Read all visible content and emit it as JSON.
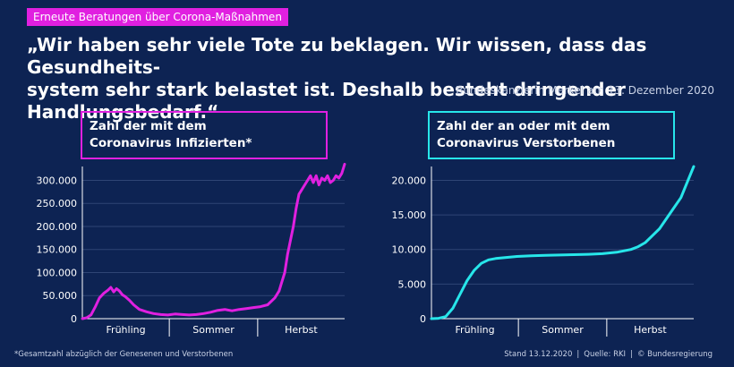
{
  "header": {
    "tag": "Erneute Beratungen über Corona-Maßnahmen",
    "quote_line1": "„Wir haben sehr viele Tote zu beklagen. Wir wissen, dass das Gesundheits-",
    "quote_line2": "system sehr stark belastet ist. Deshalb besteht dringender Handlungsbedarf.“",
    "attribution": "Bundeskanzlerin Merkel am 13. Dezember 2020"
  },
  "colors": {
    "background": "#0d2353",
    "magenta": "#e020e0",
    "cyan": "#27e6ea"
  },
  "footer": {
    "note": "*Gesamtzahl abzüglich der Genesenen und Verstorbenen",
    "stand": "Stand 13.12.2020",
    "source": "Quelle: RKI",
    "copyright": "© Bundesregierung"
  },
  "chart_data": [
    {
      "type": "line",
      "title_line1": "Zahl der mit dem",
      "title_line2": "Coronavirus Infizierten*",
      "color": "#e020e0",
      "ylim": [
        0,
        330000
      ],
      "yticks": [
        0,
        50000,
        100000,
        150000,
        200000,
        250000,
        300000
      ],
      "ytick_labels": [
        "0",
        "50.000",
        "100.000",
        "150.000",
        "200.000",
        "250.000",
        "300.000"
      ],
      "season_labels": [
        "Frühling",
        "Sommer",
        "Herbst"
      ],
      "grid": true,
      "x": [
        0,
        3,
        6,
        9,
        12,
        15,
        18,
        20,
        22,
        24,
        26,
        28,
        30,
        33,
        36,
        40,
        45,
        50,
        55,
        60,
        65,
        70,
        75,
        80,
        85,
        90,
        95,
        100,
        105,
        110,
        115,
        120,
        125,
        130,
        135,
        138,
        140,
        142,
        144,
        146,
        148,
        150,
        152,
        154,
        156,
        158,
        160,
        162,
        164,
        166,
        168,
        170,
        172,
        174,
        176,
        178,
        180,
        182,
        184
      ],
      "values": [
        0,
        2000,
        8000,
        25000,
        45000,
        55000,
        62000,
        68000,
        58000,
        65000,
        60000,
        52000,
        48000,
        40000,
        30000,
        20000,
        15000,
        11000,
        9000,
        8000,
        10000,
        9000,
        8000,
        9000,
        11000,
        14000,
        18000,
        20000,
        17000,
        20000,
        22000,
        24000,
        26000,
        30000,
        45000,
        60000,
        80000,
        100000,
        140000,
        170000,
        200000,
        240000,
        270000,
        280000,
        290000,
        300000,
        310000,
        295000,
        310000,
        290000,
        305000,
        300000,
        310000,
        295000,
        300000,
        310000,
        305000,
        315000,
        335000
      ]
    },
    {
      "type": "line",
      "title_line1": "Zahl der an oder mit dem",
      "title_line2": "Coronavirus Verstorbenen",
      "color": "#27e6ea",
      "ylim": [
        0,
        22000
      ],
      "yticks": [
        0,
        5000,
        10000,
        15000,
        20000
      ],
      "ytick_labels": [
        "0",
        "5.000",
        "10.000",
        "15.000",
        "20.000"
      ],
      "season_labels": [
        "Frühling",
        "Sommer",
        "Herbst"
      ],
      "grid": true,
      "x": [
        0,
        5,
        10,
        15,
        20,
        25,
        30,
        35,
        40,
        45,
        50,
        55,
        60,
        70,
        80,
        90,
        100,
        110,
        120,
        130,
        140,
        145,
        150,
        155,
        160,
        165,
        170,
        175,
        180,
        184
      ],
      "values": [
        0,
        50,
        300,
        1500,
        3500,
        5500,
        7000,
        8000,
        8500,
        8700,
        8800,
        8900,
        9000,
        9100,
        9150,
        9200,
        9250,
        9300,
        9400,
        9600,
        10000,
        10400,
        11000,
        12000,
        13000,
        14500,
        16000,
        17500,
        20000,
        22000
      ]
    }
  ]
}
